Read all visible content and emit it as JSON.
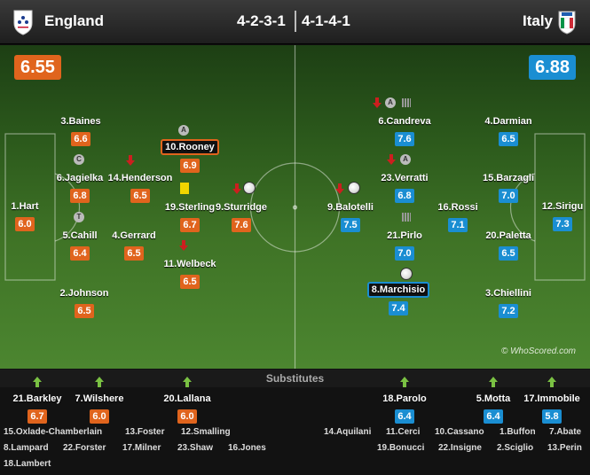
{
  "header": {
    "home_team": "England",
    "away_team": "Italy",
    "home_formation": "4-2-3-1",
    "away_formation": "4-1-4-1"
  },
  "ratings": {
    "home": "6.55",
    "away": "6.88"
  },
  "colors": {
    "home": "#e0641d",
    "away": "#1a8ed2",
    "pitch": "#3f7326",
    "captain_badge": "#bbbbbb",
    "card": "#f1d600",
    "sub_off": "#cc1f1f",
    "sub_on": "#7ac143"
  },
  "home_players": [
    {
      "name": "1.Hart",
      "rating": "6.0"
    },
    {
      "name": "2.Johnson",
      "rating": "6.5"
    },
    {
      "name": "5.Cahill",
      "rating": "6.4"
    },
    {
      "name": "6.Jagielka",
      "rating": "6.8"
    },
    {
      "name": "3.Baines",
      "rating": "6.6"
    },
    {
      "name": "4.Gerrard",
      "rating": "6.5"
    },
    {
      "name": "14.Henderson",
      "rating": "6.5"
    },
    {
      "name": "11.Welbeck",
      "rating": "6.5"
    },
    {
      "name": "19.Sterling",
      "rating": "6.7"
    },
    {
      "name": "10.Rooney",
      "rating": "6.9"
    },
    {
      "name": "9.Sturridge",
      "rating": "7.6"
    }
  ],
  "away_players": [
    {
      "name": "12.Sirigu",
      "rating": "7.3"
    },
    {
      "name": "4.Darmian",
      "rating": "6.5"
    },
    {
      "name": "15.Barzagli",
      "rating": "7.0"
    },
    {
      "name": "20.Paletta",
      "rating": "6.5"
    },
    {
      "name": "3.Chiellini",
      "rating": "7.2"
    },
    {
      "name": "16.Rossi",
      "rating": "7.1"
    },
    {
      "name": "6.Candreva",
      "rating": "7.6"
    },
    {
      "name": "23.Verratti",
      "rating": "6.8"
    },
    {
      "name": "21.Pirlo",
      "rating": "7.0"
    },
    {
      "name": "8.Marchisio",
      "rating": "7.4"
    },
    {
      "name": "9.Balotelli",
      "rating": "7.5"
    }
  ],
  "badges": {
    "captain": "A",
    "vice": "C",
    "third": "T"
  },
  "watermark": "© WhoScored.com",
  "subs_title": "Substitutes",
  "home_subs": [
    {
      "name": "21.Barkley",
      "rating": "6.7"
    },
    {
      "name": "7.Wilshere",
      "rating": "6.0"
    },
    {
      "name": "20.Lallana",
      "rating": "6.0"
    }
  ],
  "away_subs": [
    {
      "name": "18.Parolo",
      "rating": "6.4"
    },
    {
      "name": "5.Motta",
      "rating": "6.4"
    },
    {
      "name": "17.Immobile",
      "rating": "5.8"
    }
  ],
  "home_unused": [
    "15.Oxlade-Chamberlain",
    "13.Foster",
    "12.Smalling",
    "8.Lampard",
    "22.Forster",
    "17.Milner",
    "23.Shaw",
    "16.Jones",
    "18.Lambert"
  ],
  "away_unused": [
    "14.Aquilani",
    "11.Cerci",
    "10.Cassano",
    "1.Buffon",
    "7.Abate",
    "19.Bonucci",
    "22.Insigne",
    "2.Sciglio",
    "13.Perin"
  ]
}
